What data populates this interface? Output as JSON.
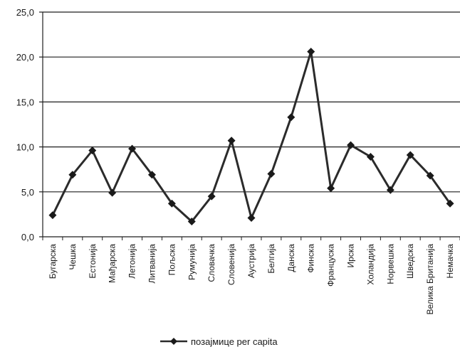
{
  "chart_data": {
    "type": "line",
    "categories": [
      "Бугарска",
      "Чешка",
      "Естонија",
      "Мађарска",
      "Летонија",
      "Литванија",
      "Пољска",
      "Румунија",
      "Словачка",
      "Словенија",
      "Аустрија",
      "Белгија",
      "Данска",
      "Финска",
      "Француска",
      "Ирска",
      "Холандија",
      "Норвешка",
      "Шведска",
      "Велика Британија",
      "Немачка"
    ],
    "series": [
      {
        "name": "позајмице per capita",
        "values": [
          2.4,
          6.9,
          9.6,
          4.9,
          9.8,
          6.9,
          3.7,
          1.7,
          4.5,
          10.7,
          2.1,
          7.0,
          13.3,
          20.6,
          5.4,
          10.2,
          8.9,
          5.2,
          9.1,
          6.8,
          3.7
        ],
        "color": "#2b2b2b"
      }
    ],
    "yticks": [
      "0,0",
      "5,0",
      "10,0",
      "15,0",
      "20,0",
      "25,0"
    ],
    "ylim": [
      0,
      25
    ],
    "grid": "horizontal",
    "legend": "bottom-center",
    "marker": "diamond"
  }
}
